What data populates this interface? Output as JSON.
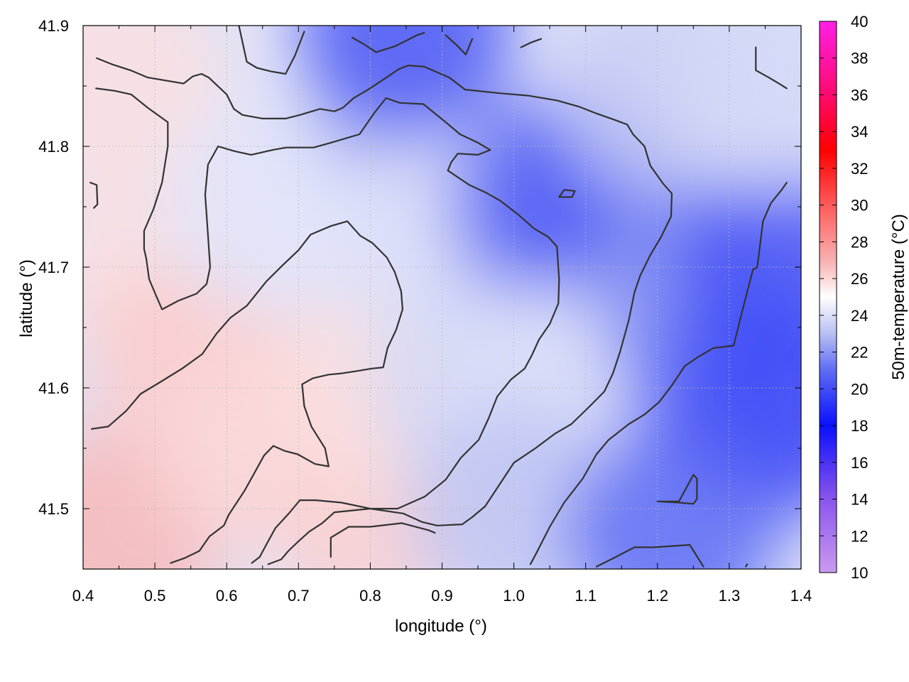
{
  "chart_data": {
    "type": "heatmap",
    "title": "",
    "xlabel": "longitude (°)",
    "ylabel": "latitude (°)",
    "colorbar_label": "50m-temperature (°C)",
    "xlim": [
      0.4,
      1.4
    ],
    "ylim": [
      41.45,
      41.9
    ],
    "x_ticks": [
      "0.4",
      "0.5",
      "0.6",
      "0.7",
      "0.8",
      "0.9",
      "1.0",
      "1.1",
      "1.2",
      "1.3",
      "1.4"
    ],
    "y_ticks": [
      "41.5",
      "41.6",
      "41.7",
      "41.8",
      "41.9"
    ],
    "colorbar_range": [
      10,
      40
    ],
    "colorbar_ticks": [
      "10",
      "12",
      "14",
      "16",
      "18",
      "20",
      "22",
      "24",
      "26",
      "28",
      "30",
      "32",
      "34",
      "36",
      "38",
      "40"
    ],
    "grid": true,
    "colormap": [
      {
        "value": 10,
        "color": "#c89cf0"
      },
      {
        "value": 14,
        "color": "#8a55ec"
      },
      {
        "value": 18,
        "color": "#0a10ff"
      },
      {
        "value": 21,
        "color": "#5e6cf4"
      },
      {
        "value": 23,
        "color": "#b8bff2"
      },
      {
        "value": 25,
        "color": "#ffffff"
      },
      {
        "value": 27,
        "color": "#f7b0b0"
      },
      {
        "value": 30,
        "color": "#ff5a5a"
      },
      {
        "value": 33,
        "color": "#ff0000"
      },
      {
        "value": 36,
        "color": "#ff0a6e"
      },
      {
        "value": 40,
        "color": "#ff20e6"
      }
    ],
    "field_samples": [
      {
        "lon": 0.45,
        "lat": 41.48,
        "temp": 26.8
      },
      {
        "lon": 0.5,
        "lat": 41.7,
        "temp": 25.8
      },
      {
        "lon": 0.45,
        "lat": 41.85,
        "temp": 25.8
      },
      {
        "lon": 0.55,
        "lat": 41.62,
        "temp": 26.3
      },
      {
        "lon": 0.65,
        "lat": 41.55,
        "temp": 26.0
      },
      {
        "lon": 0.8,
        "lat": 41.5,
        "temp": 26.2
      },
      {
        "lon": 0.82,
        "lat": 41.6,
        "temp": 25.8
      },
      {
        "lon": 0.65,
        "lat": 41.75,
        "temp": 24.2
      },
      {
        "lon": 0.85,
        "lat": 41.85,
        "temp": 22.8
      },
      {
        "lon": 0.85,
        "lat": 41.895,
        "temp": 20.5
      },
      {
        "lon": 0.9,
        "lat": 41.72,
        "temp": 24.0
      },
      {
        "lon": 0.95,
        "lat": 41.6,
        "temp": 23.8
      },
      {
        "lon": 1.05,
        "lat": 41.75,
        "temp": 21.8
      },
      {
        "lon": 1.1,
        "lat": 41.76,
        "temp": 20.5
      },
      {
        "lon": 1.05,
        "lat": 41.6,
        "temp": 24.0
      },
      {
        "lon": 1.0,
        "lat": 41.5,
        "temp": 23.2
      },
      {
        "lon": 1.2,
        "lat": 41.85,
        "temp": 23.5
      },
      {
        "lon": 1.25,
        "lat": 41.68,
        "temp": 22.0
      },
      {
        "lon": 1.3,
        "lat": 41.6,
        "temp": 21.2
      },
      {
        "lon": 1.37,
        "lat": 41.7,
        "temp": 20.2
      },
      {
        "lon": 1.37,
        "lat": 41.58,
        "temp": 20.0
      },
      {
        "lon": 1.22,
        "lat": 41.48,
        "temp": 21.0
      },
      {
        "lon": 1.35,
        "lat": 41.85,
        "temp": 23.8
      }
    ],
    "contours": [
      [
        [
          0.419,
          41.873
        ],
        [
          0.44,
          41.868
        ],
        [
          0.466,
          41.863
        ],
        [
          0.49,
          41.857
        ],
        [
          0.54,
          41.852
        ],
        [
          0.553,
          41.858
        ],
        [
          0.565,
          41.86
        ],
        [
          0.575,
          41.857
        ],
        [
          0.6,
          41.843
        ],
        [
          0.61,
          41.831
        ],
        [
          0.622,
          41.826
        ],
        [
          0.65,
          41.823
        ],
        [
          0.682,
          41.823
        ],
        [
          0.702,
          41.826
        ],
        [
          0.73,
          41.831
        ],
        [
          0.75,
          41.829
        ],
        [
          0.762,
          41.832
        ],
        [
          0.777,
          41.84
        ],
        [
          0.797,
          41.847
        ],
        [
          0.82,
          41.856
        ],
        [
          0.84,
          41.864
        ],
        [
          0.853,
          41.867
        ],
        [
          0.875,
          41.866
        ],
        [
          0.91,
          41.857
        ],
        [
          0.932,
          41.847
        ],
        [
          0.98,
          41.844
        ],
        [
          1.02,
          41.842
        ],
        [
          1.06,
          41.838
        ],
        [
          1.09,
          41.833
        ],
        [
          1.116,
          41.827
        ],
        [
          1.14,
          41.822
        ],
        [
          1.158,
          41.818
        ],
        [
          1.166,
          41.81
        ],
        [
          1.182,
          41.8
        ],
        [
          1.19,
          41.784
        ],
        [
          1.208,
          41.769
        ],
        [
          1.22,
          41.761
        ],
        [
          1.219,
          41.742
        ],
        [
          1.205,
          41.725
        ],
        [
          1.19,
          41.71
        ],
        [
          1.176,
          41.693
        ],
        [
          1.168,
          41.679
        ],
        [
          1.16,
          41.656
        ],
        [
          1.148,
          41.63
        ],
        [
          1.138,
          41.612
        ],
        [
          1.126,
          41.597
        ],
        [
          1.106,
          41.585
        ],
        [
          1.094,
          41.578
        ],
        [
          1.08,
          41.57
        ],
        [
          1.057,
          41.562
        ],
        [
          1.03,
          41.55
        ],
        [
          1.0,
          41.538
        ],
        [
          0.98,
          41.52
        ],
        [
          0.96,
          41.502
        ],
        [
          0.942,
          41.493
        ],
        [
          0.928,
          41.487
        ],
        [
          0.893,
          41.486
        ],
        [
          0.872,
          41.489
        ],
        [
          0.846,
          41.496
        ],
        [
          0.8,
          41.5
        ],
        [
          0.76,
          41.505
        ],
        [
          0.724,
          41.507
        ],
        [
          0.702,
          41.507
        ],
        [
          0.688,
          41.497
        ],
        [
          0.668,
          41.484
        ],
        [
          0.655,
          41.47
        ],
        [
          0.646,
          41.46
        ],
        [
          0.635,
          41.455
        ]
      ],
      [
        [
          0.418,
          41.848
        ],
        [
          0.444,
          41.846
        ],
        [
          0.467,
          41.843
        ],
        [
          0.49,
          41.832
        ],
        [
          0.518,
          41.82
        ],
        [
          0.518,
          41.8
        ],
        [
          0.51,
          41.77
        ],
        [
          0.498,
          41.748
        ],
        [
          0.485,
          41.73
        ],
        [
          0.485,
          41.715
        ],
        [
          0.488,
          41.707
        ],
        [
          0.492,
          41.69
        ],
        [
          0.502,
          41.676
        ],
        [
          0.51,
          41.665
        ],
        [
          0.532,
          41.672
        ],
        [
          0.558,
          41.678
        ],
        [
          0.572,
          41.686
        ],
        [
          0.577,
          41.7
        ],
        [
          0.573,
          41.735
        ],
        [
          0.57,
          41.76
        ],
        [
          0.574,
          41.785
        ],
        [
          0.588,
          41.8
        ],
        [
          0.611,
          41.796
        ],
        [
          0.634,
          41.793
        ],
        [
          0.664,
          41.797
        ],
        [
          0.683,
          41.799
        ],
        [
          0.721,
          41.799
        ],
        [
          0.745,
          41.803
        ],
        [
          0.785,
          41.81
        ],
        [
          0.806,
          41.828
        ],
        [
          0.822,
          41.84
        ],
        [
          0.841,
          41.836
        ],
        [
          0.874,
          41.835
        ],
        [
          0.905,
          41.82
        ],
        [
          0.925,
          41.81
        ],
        [
          0.95,
          41.803
        ],
        [
          0.967,
          41.797
        ],
        [
          0.95,
          41.793
        ],
        [
          0.922,
          41.794
        ],
        [
          0.913,
          41.787
        ],
        [
          0.908,
          41.78
        ],
        [
          0.918,
          41.776
        ],
        [
          0.938,
          41.768
        ],
        [
          0.96,
          41.762
        ],
        [
          0.981,
          41.755
        ],
        [
          1.005,
          41.744
        ],
        [
          1.028,
          41.732
        ],
        [
          1.048,
          41.725
        ],
        [
          1.06,
          41.717
        ],
        [
          1.063,
          41.69
        ],
        [
          1.062,
          41.67
        ],
        [
          1.05,
          41.653
        ],
        [
          1.035,
          41.64
        ],
        [
          1.025,
          41.627
        ],
        [
          1.015,
          41.616
        ],
        [
          0.996,
          41.607
        ],
        [
          0.977,
          41.593
        ],
        [
          0.965,
          41.575
        ],
        [
          0.951,
          41.557
        ],
        [
          0.926,
          41.542
        ],
        [
          0.905,
          41.524
        ],
        [
          0.876,
          41.51
        ],
        [
          0.838,
          41.5
        ],
        [
          0.8,
          41.5
        ],
        [
          0.75,
          41.497
        ],
        [
          0.733,
          41.488
        ],
        [
          0.715,
          41.481
        ],
        [
          0.7,
          41.473
        ],
        [
          0.686,
          41.465
        ],
        [
          0.676,
          41.458
        ],
        [
          0.658,
          41.454
        ]
      ],
      [
        [
          0.412,
          41.566
        ],
        [
          0.435,
          41.568
        ],
        [
          0.46,
          41.581
        ],
        [
          0.48,
          41.595
        ],
        [
          0.508,
          41.605
        ],
        [
          0.538,
          41.616
        ],
        [
          0.566,
          41.628
        ],
        [
          0.586,
          41.645
        ],
        [
          0.605,
          41.658
        ],
        [
          0.628,
          41.668
        ],
        [
          0.655,
          41.688
        ],
        [
          0.677,
          41.701
        ],
        [
          0.7,
          41.714
        ],
        [
          0.717,
          41.727
        ],
        [
          0.745,
          41.734
        ],
        [
          0.768,
          41.738
        ],
        [
          0.786,
          41.726
        ],
        [
          0.803,
          41.72
        ],
        [
          0.823,
          41.708
        ],
        [
          0.834,
          41.696
        ],
        [
          0.843,
          41.68
        ],
        [
          0.845,
          41.665
        ],
        [
          0.836,
          41.648
        ],
        [
          0.824,
          41.633
        ],
        [
          0.818,
          41.617
        ],
        [
          0.802,
          41.616
        ],
        [
          0.782,
          41.614
        ],
        [
          0.76,
          41.612
        ],
        [
          0.742,
          41.611
        ],
        [
          0.72,
          41.608
        ],
        [
          0.705,
          41.603
        ],
        [
          0.708,
          41.585
        ],
        [
          0.718,
          41.568
        ],
        [
          0.737,
          41.55
        ],
        [
          0.742,
          41.535
        ],
        [
          0.723,
          41.537
        ],
        [
          0.699,
          41.545
        ],
        [
          0.68,
          41.548
        ],
        [
          0.665,
          41.552
        ],
        [
          0.652,
          41.544
        ],
        [
          0.64,
          41.531
        ],
        [
          0.625,
          41.515
        ],
        [
          0.603,
          41.495
        ],
        [
          0.596,
          41.486
        ],
        [
          0.576,
          41.477
        ],
        [
          0.562,
          41.465
        ],
        [
          0.541,
          41.459
        ],
        [
          0.522,
          41.455
        ]
      ],
      [
        [
          0.617,
          41.9
        ],
        [
          0.628,
          41.87
        ],
        [
          0.642,
          41.865
        ],
        [
          0.662,
          41.862
        ],
        [
          0.682,
          41.86
        ],
        [
          0.695,
          41.875
        ],
        [
          0.708,
          41.895
        ]
      ],
      [
        [
          0.775,
          41.89
        ],
        [
          0.79,
          41.885
        ],
        [
          0.808,
          41.878
        ],
        [
          0.835,
          41.883
        ],
        [
          0.865,
          41.892
        ],
        [
          0.875,
          41.894
        ]
      ],
      [
        [
          0.905,
          41.892
        ],
        [
          0.92,
          41.884
        ],
        [
          0.933,
          41.876
        ],
        [
          0.942,
          41.889
        ]
      ],
      [
        [
          1.01,
          41.882
        ],
        [
          1.024,
          41.886
        ],
        [
          1.038,
          41.889
        ]
      ],
      [
        [
          1.337,
          41.882
        ],
        [
          1.337,
          41.863
        ],
        [
          1.355,
          41.857
        ],
        [
          1.372,
          41.851
        ],
        [
          1.38,
          41.848
        ]
      ],
      [
        [
          0.41,
          41.77
        ],
        [
          0.419,
          41.768
        ],
        [
          0.42,
          41.752
        ],
        [
          0.415,
          41.749
        ]
      ],
      [
        [
          1.085,
          41.763
        ],
        [
          1.07,
          41.764
        ],
        [
          1.063,
          41.758
        ],
        [
          1.081,
          41.758
        ],
        [
          1.085,
          41.763
        ]
      ],
      [
        [
          1.023,
          41.454
        ],
        [
          1.032,
          41.464
        ],
        [
          1.05,
          41.485
        ],
        [
          1.07,
          41.505
        ],
        [
          1.096,
          41.525
        ],
        [
          1.115,
          41.545
        ],
        [
          1.132,
          41.557
        ],
        [
          1.16,
          41.57
        ],
        [
          1.182,
          41.578
        ],
        [
          1.202,
          41.588
        ],
        [
          1.22,
          41.602
        ],
        [
          1.238,
          41.618
        ],
        [
          1.255,
          41.625
        ],
        [
          1.278,
          41.633
        ],
        [
          1.306,
          41.635
        ],
        [
          1.312,
          41.649
        ],
        [
          1.32,
          41.668
        ],
        [
          1.333,
          41.698
        ],
        [
          1.339,
          41.7
        ],
        [
          1.343,
          41.719
        ],
        [
          1.347,
          41.738
        ],
        [
          1.358,
          41.753
        ],
        [
          1.373,
          41.764
        ],
        [
          1.38,
          41.77
        ]
      ],
      [
        [
          1.2,
          41.506
        ],
        [
          1.23,
          41.505
        ],
        [
          1.25,
          41.504
        ],
        [
          1.255,
          41.508
        ],
        [
          1.255,
          41.525
        ],
        [
          1.25,
          41.528
        ],
        [
          1.23,
          41.506
        ],
        [
          1.2,
          41.506
        ]
      ],
      [
        [
          1.115,
          41.452
        ],
        [
          1.142,
          41.46
        ],
        [
          1.168,
          41.468
        ],
        [
          1.195,
          41.468
        ],
        [
          1.245,
          41.47
        ],
        [
          1.264,
          41.452
        ]
      ],
      [
        [
          0.745,
          41.46
        ],
        [
          0.745,
          41.476
        ],
        [
          0.77,
          41.485
        ],
        [
          0.8,
          41.485
        ],
        [
          0.844,
          41.488
        ],
        [
          0.882,
          41.482
        ],
        [
          0.89,
          41.48
        ]
      ],
      [
        [
          1.323,
          41.452
        ],
        [
          1.325,
          41.454
        ]
      ]
    ]
  }
}
